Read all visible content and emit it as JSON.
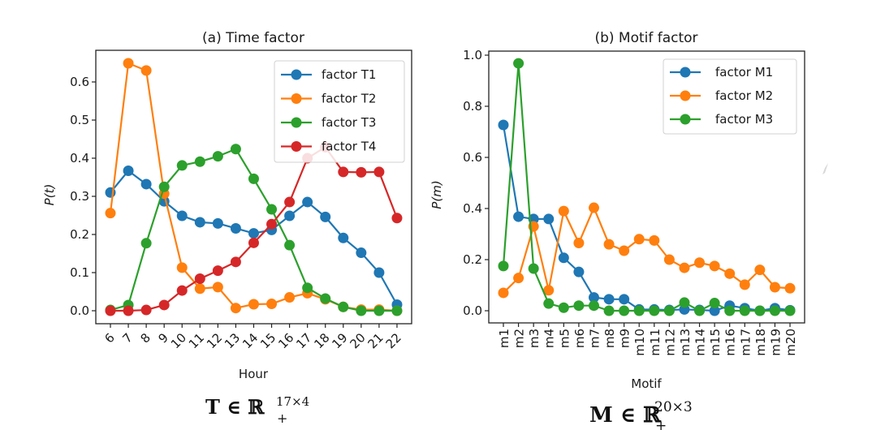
{
  "chart_data": [
    {
      "type": "line",
      "title": "(a) Time factor",
      "xlabel": "Hour",
      "ylabel": "P(t)",
      "categories": [
        "6",
        "7",
        "8",
        "9",
        "10",
        "11",
        "12",
        "13",
        "14",
        "15",
        "16",
        "17",
        "18",
        "19",
        "20",
        "21",
        "22"
      ],
      "yticks": [
        "0.0",
        "0.1",
        "0.2",
        "0.3",
        "0.4",
        "0.5",
        "0.6"
      ],
      "ylim": [
        -0.033,
        0.684
      ],
      "grid": false,
      "legend_position": "top-right",
      "caption": {
        "base": "T ∈ ℝ",
        "sub": "+",
        "sup": "17×4"
      },
      "series": [
        {
          "name": "factor T1",
          "color": "#1f77b4",
          "values": [
            0.31,
            0.367,
            0.332,
            0.287,
            0.249,
            0.232,
            0.229,
            0.216,
            0.203,
            0.212,
            0.249,
            0.285,
            0.246,
            0.191,
            0.152,
            0.1,
            0.016
          ]
        },
        {
          "name": "factor T2",
          "color": "#ff7f0e",
          "values": [
            0.256,
            0.649,
            0.63,
            0.307,
            0.113,
            0.058,
            0.062,
            0.007,
            0.017,
            0.018,
            0.035,
            0.046,
            0.03,
            0.01,
            0.003,
            0.003,
            0.0
          ]
        },
        {
          "name": "factor T3",
          "color": "#2ca02c",
          "values": [
            0.002,
            0.015,
            0.177,
            0.325,
            0.381,
            0.391,
            0.405,
            0.424,
            0.346,
            0.266,
            0.172,
            0.06,
            0.032,
            0.01,
            0.0,
            0.0,
            0.0
          ]
        },
        {
          "name": "factor T4",
          "color": "#d62728",
          "values": [
            0.0,
            0.0,
            0.002,
            0.015,
            0.053,
            0.084,
            0.105,
            0.128,
            0.178,
            0.227,
            0.285,
            0.4,
            0.429,
            0.364,
            0.363,
            0.364,
            0.243
          ]
        }
      ]
    },
    {
      "type": "line",
      "title": "(b) Motif factor",
      "xlabel": "Motif",
      "ylabel": "P(m)",
      "categories": [
        "m1",
        "m2",
        "m3",
        "m4",
        "m5",
        "m6",
        "m7",
        "m8",
        "m9",
        "m10",
        "m11",
        "m12",
        "m13",
        "m14",
        "m15",
        "m16",
        "m17",
        "m18",
        "m19",
        "m20"
      ],
      "yticks": [
        "0.0",
        "0.2",
        "0.4",
        "0.6",
        "0.8",
        "1.0"
      ],
      "ylim": [
        -0.048,
        1.016
      ],
      "grid": false,
      "legend_position": "top-right",
      "caption": {
        "base": "M ∈ ℝ",
        "sub": "+",
        "sup": "20×3"
      },
      "series": [
        {
          "name": "factor M1",
          "color": "#1f77b4",
          "values": [
            0.727,
            0.368,
            0.359,
            0.359,
            0.207,
            0.152,
            0.052,
            0.045,
            0.045,
            0.005,
            0.005,
            0.003,
            0.005,
            0.003,
            0.0,
            0.02,
            0.01,
            0.0,
            0.01,
            0.002
          ]
        },
        {
          "name": "factor M2",
          "color": "#ff7f0e",
          "values": [
            0.07,
            0.128,
            0.33,
            0.08,
            0.39,
            0.265,
            0.403,
            0.26,
            0.235,
            0.28,
            0.275,
            0.2,
            0.168,
            0.188,
            0.175,
            0.145,
            0.102,
            0.16,
            0.092,
            0.088
          ]
        },
        {
          "name": "factor M3",
          "color": "#2ca02c",
          "values": [
            0.175,
            0.968,
            0.165,
            0.028,
            0.012,
            0.02,
            0.02,
            0.0,
            0.0,
            0.0,
            0.0,
            0.0,
            0.032,
            0.0,
            0.03,
            0.0,
            0.0,
            0.0,
            0.0,
            0.0
          ]
        }
      ]
    }
  ]
}
